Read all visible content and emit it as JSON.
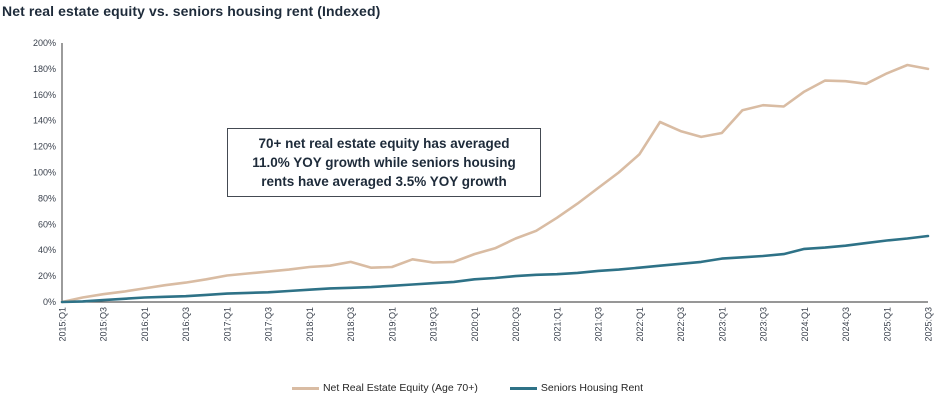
{
  "title": "Net real estate equity vs. seniors housing rent (Indexed)",
  "annotation": {
    "lines": [
      "70+ net real estate equity has averaged",
      "11.0% YOY growth while seniors housing",
      "rents have averaged 3.5% YOY growth"
    ]
  },
  "colors": {
    "equity_line": "#d9bca3",
    "rent_line": "#2e7287",
    "axis": "#595959",
    "tick_label": "#3a414d",
    "title_text": "#1e2b3a"
  },
  "chart_data": {
    "type": "line",
    "title": "Net real estate equity vs. seniors housing rent (Indexed)",
    "xlabel": "",
    "ylabel": "",
    "ylim": [
      0,
      200
    ],
    "y_tick_step": 20,
    "y_tick_labels": [
      "0%",
      "20%",
      "40%",
      "60%",
      "80%",
      "100%",
      "120%",
      "140%",
      "160%",
      "180%",
      "200%"
    ],
    "grid": false,
    "legend_position": "bottom",
    "x_tick_labels_shown": [
      "2015:Q1",
      "2015:Q3",
      "2016:Q1",
      "2016:Q3",
      "2017:Q1",
      "2017:Q3",
      "2018:Q1",
      "2018:Q3",
      "2019:Q1",
      "2019:Q3",
      "2020:Q1",
      "2020:Q3",
      "2021:Q1",
      "2021:Q3",
      "2022:Q1",
      "2022:Q3",
      "2023:Q1",
      "2023:Q3",
      "2024:Q1",
      "2024:Q3",
      "2025:Q1",
      "2025:Q3"
    ],
    "categories": [
      "2015:Q1",
      "2015:Q2",
      "2015:Q3",
      "2015:Q4",
      "2016:Q1",
      "2016:Q2",
      "2016:Q3",
      "2016:Q4",
      "2017:Q1",
      "2017:Q2",
      "2017:Q3",
      "2017:Q4",
      "2018:Q1",
      "2018:Q2",
      "2018:Q3",
      "2018:Q4",
      "2019:Q1",
      "2019:Q2",
      "2019:Q3",
      "2019:Q4",
      "2020:Q1",
      "2020:Q2",
      "2020:Q3",
      "2020:Q4",
      "2021:Q1",
      "2021:Q2",
      "2021:Q3",
      "2021:Q4",
      "2022:Q1",
      "2022:Q2",
      "2022:Q3",
      "2022:Q4",
      "2023:Q1",
      "2023:Q2",
      "2023:Q3",
      "2023:Q4",
      "2024:Q1",
      "2024:Q2",
      "2024:Q3",
      "2024:Q4",
      "2025:Q1",
      "2025:Q2",
      "2025:Q3"
    ],
    "series": [
      {
        "name": "Net Real Estate Equity (Age 70+)",
        "color": "#d9bca3",
        "unit": "percent",
        "values": [
          0,
          3.5,
          6,
          8,
          10.5,
          13,
          15,
          17.5,
          20.5,
          22,
          23.5,
          25,
          27,
          28,
          31,
          26.5,
          27,
          33,
          30.5,
          31,
          37,
          41.5,
          49,
          55,
          65,
          76,
          88,
          100,
          114,
          139,
          132,
          127.5,
          130.5,
          148,
          152,
          151,
          162.5,
          171,
          170.5,
          168.5,
          176.5,
          183,
          180
        ]
      },
      {
        "name": "Seniors Housing Rent",
        "color": "#2e7287",
        "unit": "percent",
        "values": [
          0,
          0.5,
          1.5,
          2.5,
          3.5,
          4,
          4.5,
          5.5,
          6.5,
          7,
          7.5,
          8.5,
          9.5,
          10.5,
          11,
          11.5,
          12.5,
          13.5,
          14.5,
          15.5,
          17.5,
          18.5,
          20,
          21,
          21.5,
          22.5,
          24,
          25,
          26.5,
          28,
          29.5,
          31,
          33.5,
          34.5,
          35.5,
          37,
          41,
          42,
          43.5,
          45.5,
          47.5,
          49,
          51
        ]
      }
    ]
  }
}
